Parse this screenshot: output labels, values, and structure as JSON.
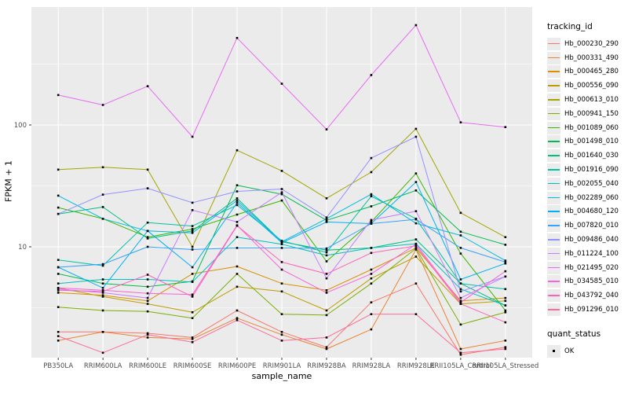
{
  "figure": {
    "panel_bg": "#ebebeb",
    "grid_color": "#ffffff",
    "tick_color": "#333333",
    "tick_label_color": "#4d4d4d",
    "point_color": "#000000"
  },
  "axes": {
    "x_title": "sample_name",
    "y_title": "FPKM + 1",
    "y_tick_labels": [
      "100",
      "10"
    ]
  },
  "legend": {
    "tracking_title": "tracking_id",
    "quant_title": "quant_status",
    "quant_items": [
      {
        "label": "OK",
        "shape": "black-square"
      }
    ]
  },
  "chart_data": {
    "type": "line",
    "xlabel": "sample_name",
    "ylabel": "FPKM + 1",
    "y_scale": "log10",
    "ylim": [
      1.1,
      930
    ],
    "y_major_breaks": [
      10,
      100
    ],
    "y_minor_breaks": [
      3.162,
      31.62,
      316.2
    ],
    "grid": "major-and-minor",
    "legend_position": "right",
    "marker": "small-black-point",
    "x_categories": [
      "PB350LA",
      "RRIM600LA",
      "RRIM600LE",
      "RRIM600SE",
      "RRIM600PE",
      "RRIM901LA",
      "RRIM928BA",
      "RRIM928LA",
      "RRIM928LE",
      "RRII105LA_Control",
      "RRII105LA_Stressed"
    ],
    "series": [
      {
        "name": "Hb_000230_290",
        "color": "#F8766D",
        "values": [
          2.0,
          2.0,
          1.95,
          1.8,
          3.0,
          2.0,
          1.5,
          3.5,
          5.0,
          1.3,
          1.5
        ]
      },
      {
        "name": "Hb_000331_490",
        "color": "#EA8331",
        "values": [
          1.7,
          2.0,
          1.8,
          1.75,
          2.6,
          1.9,
          1.45,
          2.1,
          9.5,
          1.45,
          1.7
        ]
      },
      {
        "name": "Hb_000465_280",
        "color": "#D89000",
        "values": [
          4.2,
          4.0,
          3.6,
          6.0,
          6.9,
          5.0,
          4.4,
          6.5,
          9.8,
          3.6,
          3.8
        ]
      },
      {
        "name": "Hb_000556_090",
        "color": "#C09B00",
        "values": [
          4.6,
          3.9,
          3.4,
          2.9,
          4.7,
          4.3,
          3.0,
          5.5,
          8.3,
          3.4,
          3.6
        ]
      },
      {
        "name": "Hb_000613_010",
        "color": "#A3A500",
        "values": [
          43,
          45,
          43,
          10,
          62,
          42,
          25,
          41,
          93,
          19,
          12
        ]
      },
      {
        "name": "Hb_000941_150",
        "color": "#7CAE00",
        "values": [
          3.2,
          3.0,
          2.95,
          2.6,
          6.0,
          2.8,
          2.75,
          5.0,
          9.7,
          2.3,
          2.9
        ]
      },
      {
        "name": "Hb_001089_060",
        "color": "#39B600",
        "values": [
          21,
          17,
          12,
          14,
          18.4,
          24,
          7.6,
          16,
          40,
          8.8,
          3.0
        ]
      },
      {
        "name": "Hb_001498_010",
        "color": "#00BB4E",
        "values": [
          6.0,
          5.0,
          4.7,
          5.2,
          32,
          27,
          16.5,
          21.5,
          29,
          13.3,
          10.4
        ]
      },
      {
        "name": "Hb_001640_030",
        "color": "#00BF7D",
        "values": [
          18.6,
          21.2,
          11.7,
          13.5,
          25,
          11,
          9.4,
          9.8,
          11.5,
          5.0,
          3.3
        ]
      },
      {
        "name": "Hb_001916_090",
        "color": "#00C1A3",
        "values": [
          7.8,
          7.0,
          15.8,
          14.8,
          22,
          11.2,
          9.0,
          26,
          17,
          5.0,
          4.5
        ]
      },
      {
        "name": "Hb_002055_040",
        "color": "#00BFC4",
        "values": [
          5.0,
          5.4,
          5.4,
          5.15,
          12,
          10.5,
          8.5,
          9.8,
          10.6,
          4.5,
          3.3
        ]
      },
      {
        "name": "Hb_002289_060",
        "color": "#00BAE0",
        "values": [
          26.3,
          17,
          13.5,
          13.0,
          24,
          11,
          17,
          27,
          15.6,
          12.4,
          7.7
        ]
      },
      {
        "name": "Hb_004680_120",
        "color": "#00B0F6",
        "values": [
          6.8,
          4.6,
          13.5,
          6.8,
          23,
          10.8,
          16,
          15.5,
          34,
          5.4,
          7.3
        ]
      },
      {
        "name": "Hb_007820_010",
        "color": "#35A2FF",
        "values": [
          6.8,
          7.2,
          10,
          9.5,
          9.8,
          9.8,
          9.7,
          15.5,
          16.8,
          9.8,
          7.5
        ]
      },
      {
        "name": "Hb_009486_040",
        "color": "#9590FF",
        "values": [
          18.6,
          26.8,
          30.2,
          23,
          28.5,
          29.8,
          17.4,
          53.5,
          80,
          4.3,
          5.7
        ]
      },
      {
        "name": "Hb_011224_100",
        "color": "#C77CFF",
        "values": [
          4.5,
          4.2,
          3.8,
          20,
          16,
          28,
          5.5,
          16.6,
          19.6,
          3.8,
          5.7
        ]
      },
      {
        "name": "Hb_021495_020",
        "color": "#E76BF3",
        "values": [
          176,
          146,
          208,
          80,
          518,
          218,
          92,
          257,
          660,
          105,
          96
        ]
      },
      {
        "name": "Hb_034585_010",
        "color": "#FA62DB",
        "values": [
          4.6,
          4.4,
          4.15,
          4.05,
          15,
          6.5,
          4.2,
          6.0,
          10.5,
          3.5,
          6.3
        ]
      },
      {
        "name": "Hb_043792_040",
        "color": "#FF62BC",
        "values": [
          4.4,
          4.3,
          5.9,
          3.9,
          14.9,
          7.5,
          6.0,
          8.9,
          10.2,
          3.4,
          2.4
        ]
      },
      {
        "name": "Hb_091296_010",
        "color": "#FF6A98",
        "values": [
          1.85,
          1.35,
          1.9,
          1.65,
          2.5,
          1.7,
          1.8,
          2.8,
          2.8,
          1.35,
          1.45
        ]
      }
    ]
  }
}
